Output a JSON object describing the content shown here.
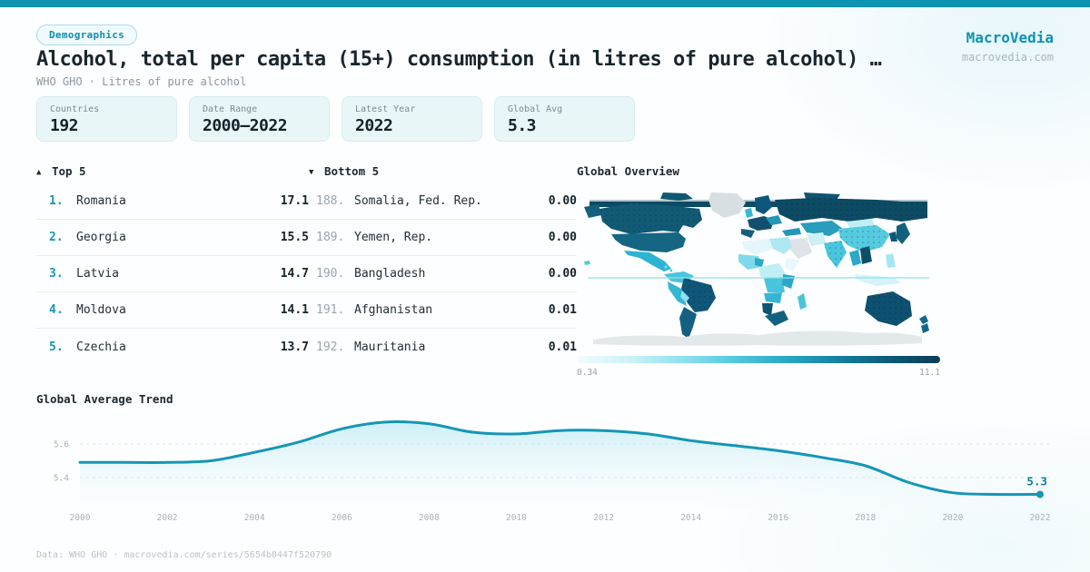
{
  "header": {
    "badge": "Demographics",
    "title": "Alcohol, total per capita (15+) consumption (in litres of pure alcohol) …",
    "subtitle": "WHO GHO · Litres of pure alcohol",
    "brand": "MacroVedia",
    "brand_url": "macrovedia.com"
  },
  "stats": [
    {
      "label": "Countries",
      "value": "192"
    },
    {
      "label": "Date Range",
      "value": "2000–2022"
    },
    {
      "label": "Latest Year",
      "value": "2022"
    },
    {
      "label": "Global Avg",
      "value": "5.3"
    }
  ],
  "top5": {
    "arrow": "▲",
    "title": "Top 5",
    "rows": [
      {
        "rank": "1.",
        "name": "Romania",
        "value": "17.1"
      },
      {
        "rank": "2.",
        "name": "Georgia",
        "value": "15.5"
      },
      {
        "rank": "3.",
        "name": "Latvia",
        "value": "14.7"
      },
      {
        "rank": "4.",
        "name": "Moldova",
        "value": "14.1"
      },
      {
        "rank": "5.",
        "name": "Czechia",
        "value": "13.7"
      }
    ]
  },
  "bottom5": {
    "arrow": "▼",
    "title": "Bottom 5",
    "rows": [
      {
        "rank": "188.",
        "name": "Somalia, Fed. Rep.",
        "value": "0.00"
      },
      {
        "rank": "189.",
        "name": "Yemen, Rep.",
        "value": "0.00"
      },
      {
        "rank": "190.",
        "name": "Bangladesh",
        "value": "0.00"
      },
      {
        "rank": "191.",
        "name": "Afghanistan",
        "value": "0.01"
      },
      {
        "rank": "192.",
        "name": "Mauritania",
        "value": "0.01"
      }
    ]
  },
  "map": {
    "title": "Global Overview",
    "legend_min": "0.34",
    "legend_max": "11.1"
  },
  "trend": {
    "title": "Global Average Trend"
  },
  "footer": "Data: WHO GHO · macrovedia.com/series/5654b0447f520790",
  "chart_data": [
    {
      "type": "heatmap",
      "subtype": "world-choropleth",
      "title": "Global Overview",
      "metric": "Alcohol, total per capita (15+) consumption (litres of pure alcohol)",
      "scale_min": 0.34,
      "scale_max": 11.1,
      "scale_colors": [
        "#f4fcfe",
        "#93e3f0",
        "#28a6c5",
        "#0a3c53"
      ],
      "known_values": {
        "Romania": 17.1,
        "Georgia": 15.5,
        "Latvia": 14.7,
        "Moldova": 14.1,
        "Czechia": 13.7,
        "Somalia, Fed. Rep.": 0.0,
        "Yemen, Rep.": 0.0,
        "Bangladesh": 0.0,
        "Afghanistan": 0.01,
        "Mauritania": 0.01
      }
    },
    {
      "type": "line",
      "title": "Global Average Trend",
      "xlabel": "",
      "ylabel": "",
      "x": [
        2000,
        2001,
        2002,
        2003,
        2004,
        2005,
        2006,
        2007,
        2008,
        2009,
        2010,
        2011,
        2012,
        2013,
        2014,
        2015,
        2016,
        2017,
        2018,
        2019,
        2020,
        2021,
        2022
      ],
      "series": [
        {
          "name": "Global average",
          "values": [
            5.49,
            5.49,
            5.49,
            5.5,
            5.55,
            5.61,
            5.69,
            5.73,
            5.72,
            5.67,
            5.66,
            5.68,
            5.68,
            5.66,
            5.62,
            5.59,
            5.56,
            5.52,
            5.47,
            5.37,
            5.31,
            5.3,
            5.3
          ]
        }
      ],
      "x_ticks": [
        2000,
        2002,
        2004,
        2006,
        2008,
        2010,
        2012,
        2014,
        2016,
        2018,
        2020,
        2022
      ],
      "y_ticks": [
        5.6,
        5.4
      ],
      "ylim": [
        5.25,
        5.8
      ],
      "end_label": "5.3",
      "line_color": "#1596b6",
      "area": true,
      "grid": "dashed-horizontal",
      "legend_position": "none"
    }
  ]
}
